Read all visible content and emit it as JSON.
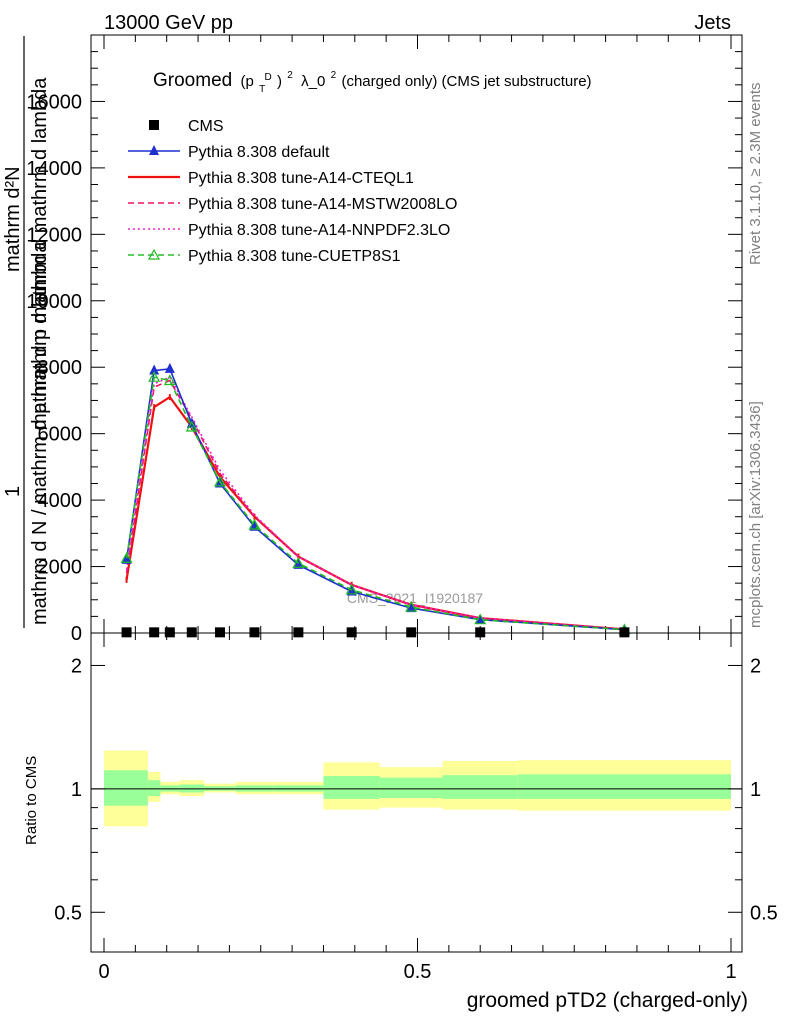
{
  "header": {
    "left": "13000 GeV pp",
    "right": "Jets"
  },
  "side_labels": {
    "rivet": "Rivet 3.1.10, ≥ 2.3M events",
    "mcplots": "mcplots.cern.ch [arXiv:1306.3436]"
  },
  "watermark": "CMS_2021_I1920187",
  "chart_data": [
    {
      "type": "line",
      "title": "Groomed (p_T^D)^2 λ_0^2  (charged only) (CMS jet substructure)",
      "title_parts": {
        "lead": "Groomed",
        "p": "(p",
        "sub": "T",
        "sup": "D",
        "close": ")",
        "sq": "2",
        "lam": "λ_0",
        "sq2": "2",
        "tail": " (charged only) (CMS jet substructure)"
      },
      "ylabel_lines": [
        "mathrm d²N",
        "mathrm d p mathrm d mathrm d lambda",
        "1",
        "mathrm d N / mathrm d p mathrm d lambda"
      ],
      "xlabel": "groomed pTD2 (charged-only)",
      "xlim": [
        -0.02,
        1.02
      ],
      "ylim": [
        0,
        18000
      ],
      "yticks": [
        0,
        2000,
        4000,
        6000,
        8000,
        10000,
        12000,
        14000,
        16000
      ],
      "ytick_labels": [
        "0",
        "2000",
        "4000",
        "6000",
        "8000",
        "10000",
        "12000",
        "14000",
        "16000"
      ],
      "legend_position": "top-left",
      "series": [
        {
          "name": "CMS",
          "color": "#000000",
          "style": "marker-square",
          "x": [
            0.036,
            0.08,
            0.105,
            0.14,
            0.185,
            0.24,
            0.31,
            0.395,
            0.49,
            0.6,
            0.83
          ],
          "values": [
            20,
            20,
            20,
            20,
            20,
            20,
            20,
            20,
            20,
            20,
            20
          ]
        },
        {
          "name": "Pythia 8.308 default",
          "color": "#1f2fd0",
          "style": "solid-triangle",
          "x": [
            0.036,
            0.08,
            0.105,
            0.14,
            0.185,
            0.24,
            0.31,
            0.395,
            0.49,
            0.6,
            0.83
          ],
          "values": [
            2200,
            7900,
            7950,
            6300,
            4500,
            3200,
            2050,
            1250,
            750,
            400,
            100
          ]
        },
        {
          "name": "Pythia 8.308 tune-A14-CTEQL1",
          "color": "#ee1111",
          "style": "solid",
          "x": [
            0.036,
            0.08,
            0.105,
            0.14,
            0.185,
            0.24,
            0.31,
            0.395,
            0.49,
            0.6,
            0.83
          ],
          "values": [
            1600,
            6800,
            7100,
            6200,
            4700,
            3500,
            2300,
            1450,
            850,
            450,
            110
          ]
        },
        {
          "name": "Pythia 8.308 tune-A14-MSTW2008LO",
          "color": "#ee1166",
          "style": "dashed",
          "x": [
            0.036,
            0.08,
            0.105,
            0.14,
            0.185,
            0.24,
            0.31,
            0.395,
            0.49,
            0.6,
            0.83
          ],
          "values": [
            1800,
            7400,
            7600,
            6450,
            4800,
            3500,
            2300,
            1450,
            850,
            450,
            110
          ]
        },
        {
          "name": "Pythia 8.308 tune-A14-NNPDF2.3LO",
          "color": "#ee22cc",
          "style": "dotted",
          "x": [
            0.036,
            0.08,
            0.105,
            0.14,
            0.185,
            0.24,
            0.31,
            0.395,
            0.49,
            0.6,
            0.83
          ],
          "values": [
            1900,
            7500,
            7700,
            6500,
            4900,
            3550,
            2300,
            1450,
            850,
            450,
            110
          ]
        },
        {
          "name": "Pythia 8.308 tune-CUETP8S1",
          "color": "#22bb22",
          "style": "dashed-open-triangle",
          "x": [
            0.036,
            0.08,
            0.105,
            0.14,
            0.185,
            0.24,
            0.31,
            0.395,
            0.49,
            0.6,
            0.83
          ],
          "values": [
            2250,
            7700,
            7600,
            6200,
            4550,
            3250,
            2100,
            1300,
            780,
            400,
            100
          ]
        }
      ]
    },
    {
      "type": "area",
      "ylabel": "Ratio to CMS",
      "xlabel": "groomed pTD2 (charged-only)",
      "xlim": [
        -0.02,
        1.02
      ],
      "ylim": [
        0.4,
        2.4
      ],
      "log_y": true,
      "yticks": [
        0.5,
        1,
        2
      ],
      "ytick_labels": [
        "0.5",
        "1",
        "2"
      ],
      "xticks": [
        0,
        0.5,
        1
      ],
      "xtick_labels": [
        "0",
        "0.5",
        "1"
      ],
      "reference_line": 1,
      "bands": {
        "bin_edges": [
          0,
          0.07,
          0.09,
          0.12,
          0.16,
          0.21,
          0.27,
          0.35,
          0.44,
          0.54,
          0.66,
          1.0
        ],
        "yellow_low": [
          0.81,
          0.93,
          0.97,
          0.96,
          0.98,
          0.97,
          0.97,
          0.89,
          0.9,
          0.89,
          0.885
        ],
        "yellow_high": [
          1.24,
          1.1,
          1.04,
          1.05,
          1.03,
          1.04,
          1.04,
          1.16,
          1.13,
          1.17,
          1.175
        ],
        "green_low": [
          0.91,
          0.96,
          0.985,
          0.98,
          0.99,
          0.985,
          0.985,
          0.945,
          0.95,
          0.945,
          0.945
        ],
        "green_high": [
          1.11,
          1.05,
          1.02,
          1.025,
          1.015,
          1.02,
          1.02,
          1.075,
          1.065,
          1.08,
          1.085
        ]
      },
      "band_colors": {
        "yellow": "#ffff99",
        "green": "#99ff99"
      }
    }
  ]
}
